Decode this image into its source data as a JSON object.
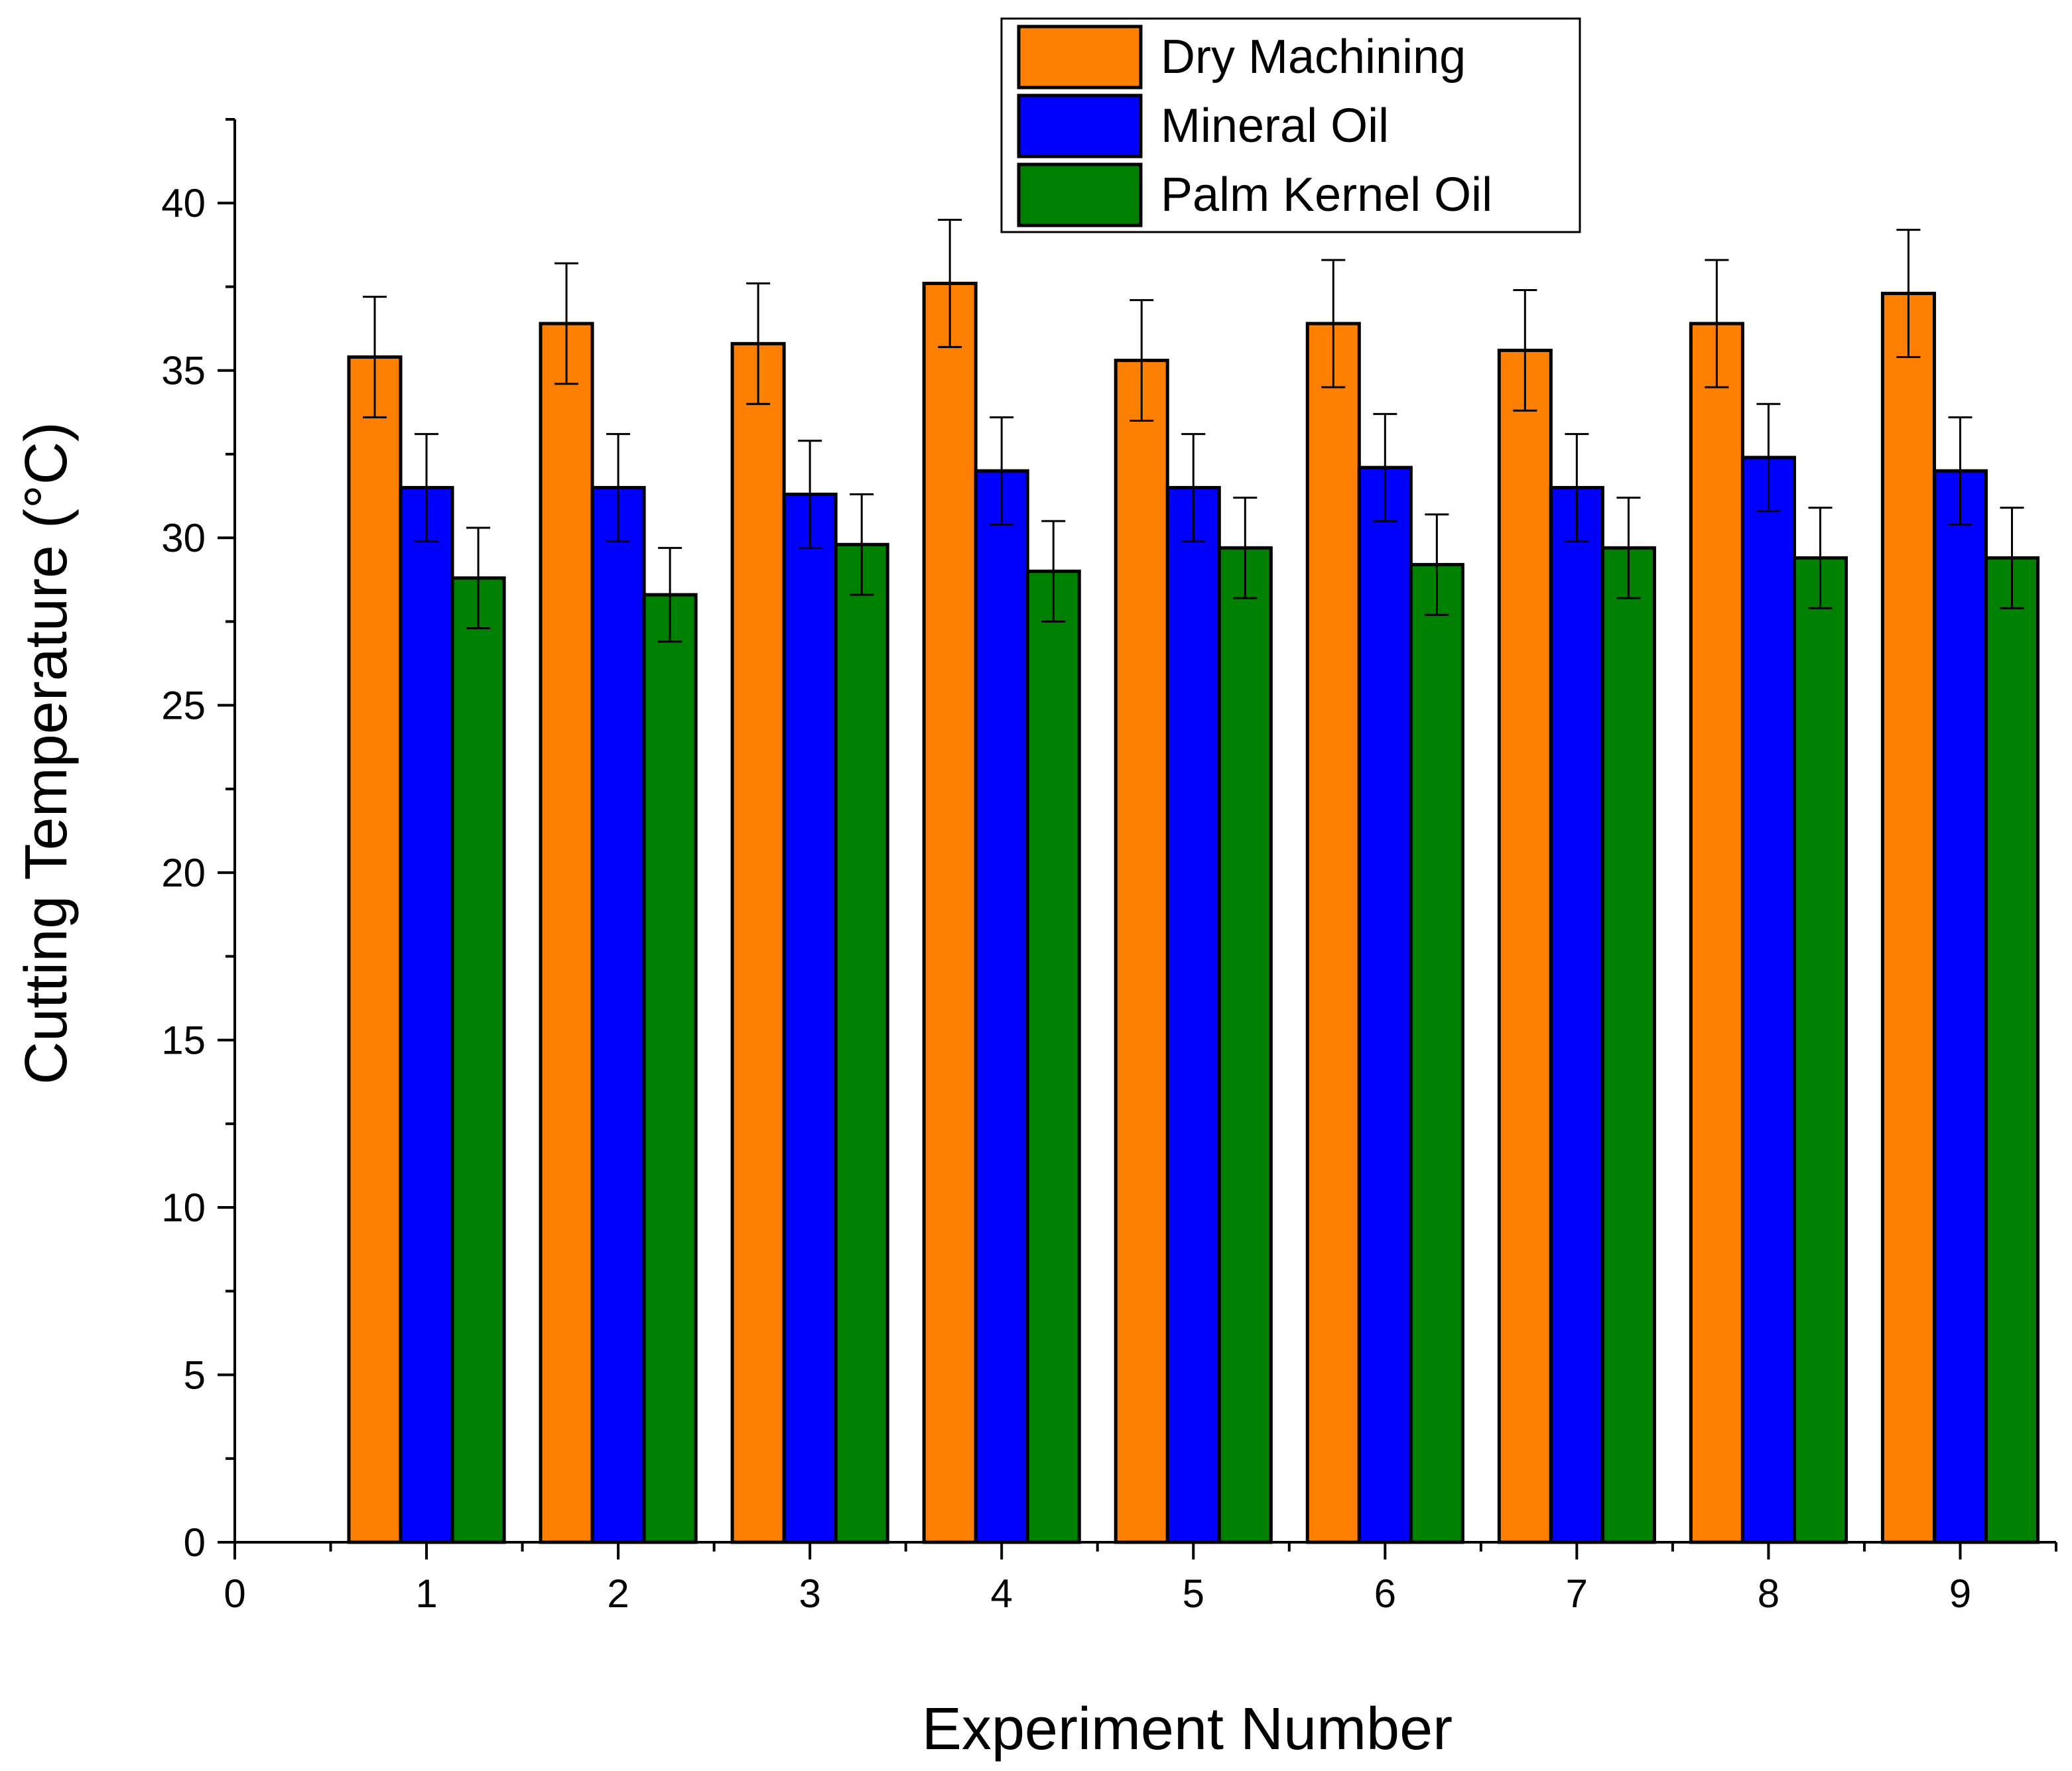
{
  "chart_data": {
    "type": "bar",
    "title": "",
    "xlabel": "Experiment Number",
    "ylabel": "Cutting Temperature (°C)",
    "x_ticks": [
      "0",
      "1",
      "2",
      "3",
      "4",
      "5",
      "6",
      "7",
      "8",
      "9"
    ],
    "y_ticks": [
      "0",
      "5",
      "10",
      "15",
      "20",
      "25",
      "30",
      "35",
      "40"
    ],
    "xlim": [
      0,
      9.5
    ],
    "ylim": [
      0,
      42.5
    ],
    "categories": [
      "1",
      "2",
      "3",
      "4",
      "5",
      "6",
      "7",
      "8",
      "9"
    ],
    "legend_position": "top-right",
    "series": [
      {
        "name": "Dry Machining",
        "color": "#ff8000",
        "values": [
          35.4,
          36.4,
          35.8,
          37.6,
          35.3,
          36.4,
          35.6,
          36.4,
          37.3
        ],
        "errors": [
          1.8,
          1.8,
          1.8,
          1.9,
          1.8,
          1.9,
          1.8,
          1.9,
          1.9
        ]
      },
      {
        "name": "Mineral Oil",
        "color": "#0000ff",
        "values": [
          31.5,
          31.5,
          31.3,
          32.0,
          31.5,
          32.1,
          31.5,
          32.4,
          32.0
        ],
        "errors": [
          1.6,
          1.6,
          1.6,
          1.6,
          1.6,
          1.6,
          1.6,
          1.6,
          1.6
        ]
      },
      {
        "name": "Palm Kernel Oil",
        "color": "#008000",
        "values": [
          28.8,
          28.3,
          29.8,
          29.0,
          29.7,
          29.2,
          29.7,
          29.4,
          29.4
        ],
        "errors": [
          1.5,
          1.4,
          1.5,
          1.5,
          1.5,
          1.5,
          1.5,
          1.5,
          1.5
        ]
      }
    ]
  }
}
